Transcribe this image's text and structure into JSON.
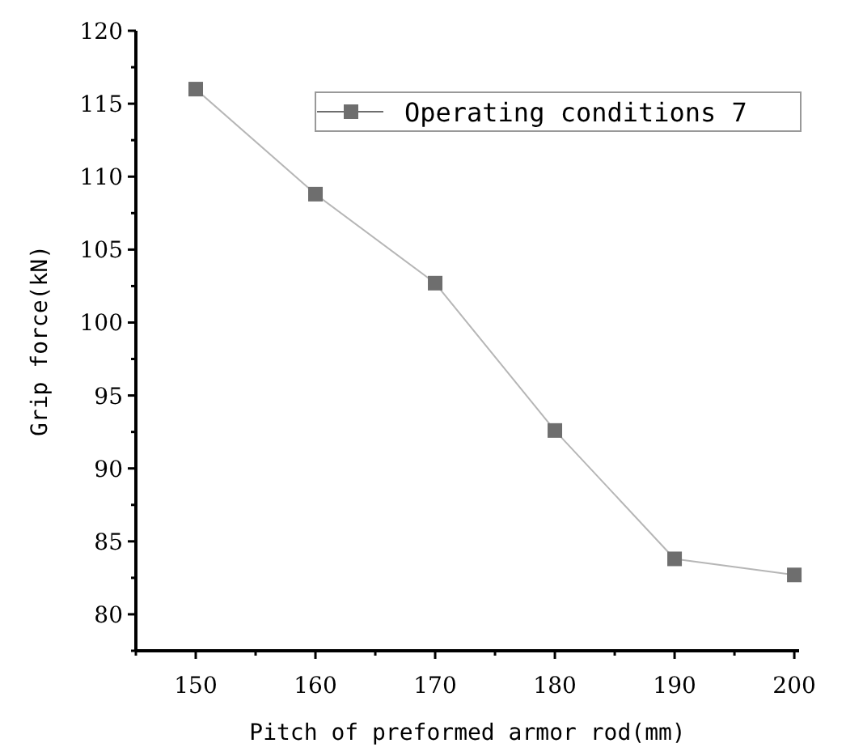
{
  "chart_data": {
    "type": "line",
    "xlabel": "Pitch of preformed armor rod(mm)",
    "ylabel": "Grip force(kN)",
    "x": [
      150,
      160,
      170,
      180,
      190,
      200
    ],
    "series": [
      {
        "name": "Operating conditions 7",
        "color": "#6e6e6e",
        "values": [
          116,
          108.8,
          102.7,
          92.6,
          83.8,
          82.7
        ]
      }
    ],
    "xlim": [
      145,
      200.4
    ],
    "ylim": [
      77.5,
      120
    ],
    "xticks": [
      {
        "value": 145,
        "label": null
      },
      150,
      {
        "value": 155,
        "label": null
      },
      160,
      {
        "value": 165,
        "label": null
      },
      170,
      {
        "value": 175,
        "label": null
      },
      180,
      {
        "value": 185,
        "label": null
      },
      190,
      {
        "value": 195,
        "label": null
      },
      200
    ],
    "yticks": [
      {
        "value": 77.5,
        "label": null
      },
      80,
      {
        "value": 82.5,
        "label": null
      },
      85,
      {
        "value": 87.5,
        "label": null
      },
      90,
      {
        "value": 92.5,
        "label": null
      },
      95,
      {
        "value": 97.5,
        "label": null
      },
      100,
      {
        "value": 102.5,
        "label": null
      },
      105,
      {
        "value": 107.5,
        "label": null
      },
      110,
      {
        "value": 112.5,
        "label": null
      },
      115,
      {
        "value": 117.5,
        "label": null
      },
      120
    ],
    "grid": false,
    "legend": "top right",
    "marker": "square",
    "line_style": "solid"
  }
}
